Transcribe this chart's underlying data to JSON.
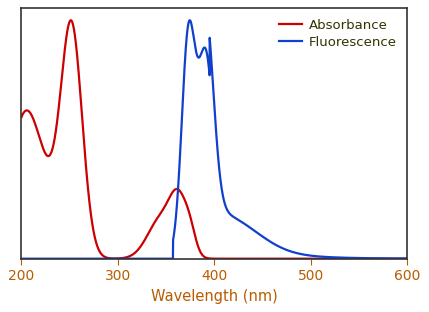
{
  "xlabel": "Wavelength (nm)",
  "xlim": [
    200,
    600
  ],
  "ylim": [
    0,
    1.05
  ],
  "absorbance_color": "#cc0000",
  "fluorescence_color": "#1040cc",
  "legend_labels": [
    "Absorbance",
    "Fluorescence"
  ],
  "legend_colors": [
    "#cc0000",
    "#1040cc"
  ],
  "background_color": "#ffffff",
  "xticks": [
    200,
    300,
    400,
    500,
    600
  ],
  "xlabel_color": "#b85c00",
  "tick_color": "#b85c00",
  "legend_text_color": "#333300",
  "spine_color": "#333333",
  "linewidth": 1.6
}
